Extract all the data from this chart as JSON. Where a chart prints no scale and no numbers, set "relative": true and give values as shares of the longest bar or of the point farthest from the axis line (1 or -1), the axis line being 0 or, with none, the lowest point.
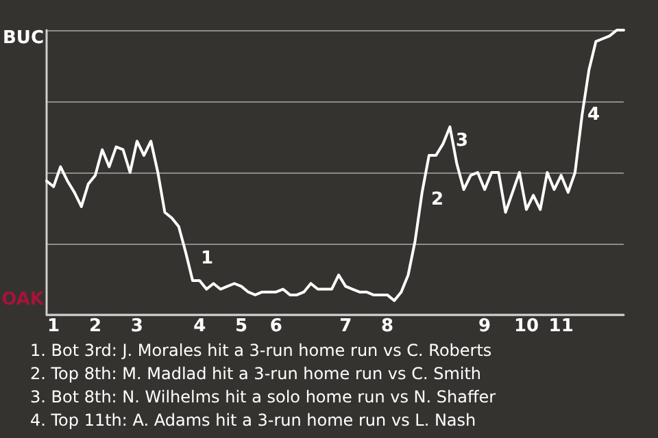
{
  "chart_data": {
    "type": "line",
    "relative": true,
    "categories": [
      null,
      "1",
      null,
      null,
      null,
      null,
      null,
      "2",
      null,
      null,
      null,
      null,
      null,
      "3",
      null,
      null,
      null,
      null,
      null,
      null,
      null,
      null,
      "4",
      null,
      null,
      null,
      null,
      null,
      "5",
      null,
      null,
      null,
      null,
      "6",
      null,
      null,
      null,
      null,
      null,
      null,
      null,
      null,
      null,
      "7",
      null,
      null,
      null,
      null,
      null,
      "8",
      null,
      null,
      null,
      null,
      null,
      null,
      null,
      null,
      null,
      null,
      null,
      null,
      null,
      "9",
      null,
      null,
      null,
      null,
      null,
      "10",
      null,
      null,
      null,
      null,
      "11",
      null,
      null,
      null,
      null,
      null,
      null,
      null,
      null,
      null
    ],
    "grid": "y",
    "marker": "none",
    "line_style": "solid",
    "series": [
      {
        "color": "#ffffff",
        "values": [
          0.47,
          0.45,
          0.52,
          0.47,
          0.43,
          0.38,
          0.46,
          0.49,
          0.58,
          0.52,
          0.59,
          0.58,
          0.5,
          0.61,
          0.56,
          0.61,
          0.5,
          0.36,
          0.34,
          0.31,
          0.22,
          0.12,
          0.12,
          0.09,
          0.11,
          0.09,
          0.1,
          0.11,
          0.1,
          0.08,
          0.07,
          0.08,
          0.08,
          0.08,
          0.09,
          0.07,
          0.07,
          0.08,
          0.11,
          0.09,
          0.09,
          0.09,
          0.14,
          0.1,
          0.09,
          0.08,
          0.08,
          0.07,
          0.07,
          0.07,
          0.05,
          0.08,
          0.14,
          0.26,
          0.43,
          0.56,
          0.56,
          0.6,
          0.66,
          0.53,
          0.44,
          0.49,
          0.5,
          0.44,
          0.5,
          0.5,
          0.36,
          0.43,
          0.5,
          0.37,
          0.42,
          0.37,
          0.5,
          0.44,
          0.49,
          0.43,
          0.5,
          0.7,
          0.86,
          0.96,
          0.97,
          0.98,
          1.0,
          1.0
        ]
      }
    ],
    "annotations": [
      "BUC",
      "OAK",
      "1",
      "2",
      "3",
      "4",
      "1. Bot 3rd: J. Morales hit a 3-run home run vs C. Roberts",
      "2. Top 8th: M. Madlad hit a 3-run home run vs C. Smith",
      "3. Bot 8th: N. Wilhelms hit a solo home run vs N. Shaffer",
      "4. Top 11th: A. Adams hit a 3-run home run vs L. Nash"
    ]
  }
}
